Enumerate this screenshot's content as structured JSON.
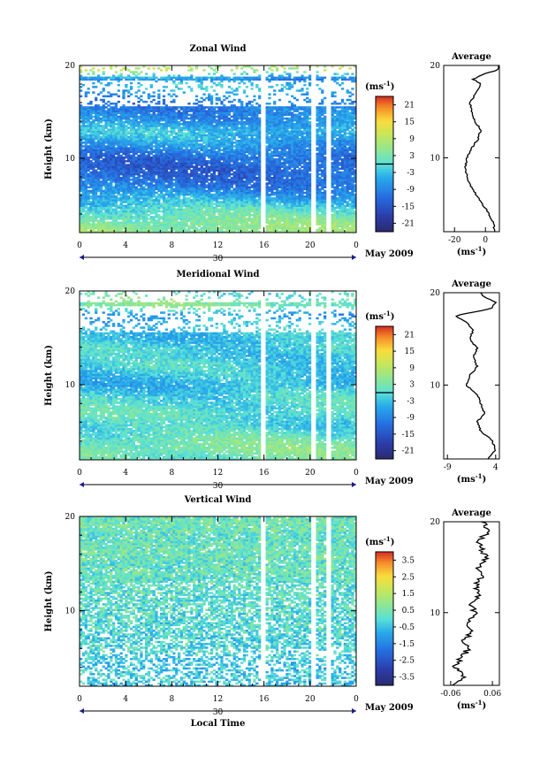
{
  "chart_data": [
    {
      "type": "heatmap",
      "title": "Zonal Wind",
      "ylabel": "Height (km)",
      "unit": "(ms",
      "unit_exp": "-1",
      "ylim": [
        2,
        20
      ],
      "yticks": [
        {
          "v": 10,
          "label": "10"
        },
        {
          "v": 20,
          "label": "20"
        }
      ],
      "xticks": [
        "0",
        "4",
        "8",
        "12",
        "16",
        "20",
        "0"
      ],
      "day_label": "30",
      "date_label": "May 2009",
      "colorbar": {
        "vmin": -24,
        "vmax": 24,
        "ticks": [
          "21",
          "15",
          "9",
          "3",
          "-3",
          "-9",
          "-15",
          "-21"
        ],
        "tick_values": [
          21,
          15,
          9,
          3,
          -3,
          -9,
          -15,
          -21
        ],
        "zero_line": 0
      },
      "profile_values": {
        "heights": [
          2,
          3,
          4,
          5,
          6,
          7,
          8,
          9,
          10,
          11,
          12,
          13,
          14,
          15,
          16,
          17,
          17.5,
          18,
          18.5,
          19,
          19.5,
          20
        ],
        "values": [
          6,
          5,
          2,
          -2,
          -6,
          -10,
          -12,
          -13,
          -12,
          -9,
          -5,
          -3,
          -7,
          -9,
          -10,
          -6,
          -4,
          -3,
          -8,
          -2,
          8,
          9
        ]
      },
      "profile": {
        "title": "Average",
        "xticks": [
          {
            "v": -20,
            "label": "-20"
          },
          {
            "v": 0,
            "label": "0"
          }
        ],
        "xlim": [
          -27,
          9
        ],
        "unit": "(ms",
        "unit_exp": "-1"
      }
    },
    {
      "type": "heatmap",
      "title": "Meridional Wind",
      "ylabel": "Height (km)",
      "unit": "(ms",
      "unit_exp": "-1",
      "ylim": [
        2,
        20
      ],
      "yticks": [
        {
          "v": 10,
          "label": "10"
        },
        {
          "v": 20,
          "label": "20"
        }
      ],
      "xticks": [
        "0",
        "4",
        "8",
        "12",
        "16",
        "20",
        "0"
      ],
      "day_label": "30",
      "date_label": "May 2009",
      "colorbar": {
        "vmin": -24,
        "vmax": 24,
        "ticks": [
          "21",
          "15",
          "9",
          "3",
          "-3",
          "-9",
          "-15",
          "-21"
        ],
        "tick_values": [
          21,
          15,
          9,
          3,
          -3,
          -9,
          -15,
          -21
        ],
        "zero_line": 0
      },
      "profile_values": {
        "heights": [
          2,
          3,
          4,
          5,
          6,
          7,
          8,
          9,
          10,
          11,
          12,
          13,
          14,
          15,
          16,
          16.8,
          17.5,
          18.3,
          19,
          19.5,
          20
        ],
        "values": [
          2,
          4,
          3,
          0,
          -1,
          1,
          0,
          -1,
          -4,
          -3,
          -1,
          -2,
          -1,
          -3,
          -2,
          -4,
          -7,
          3,
          4,
          1,
          0
        ]
      },
      "profile": {
        "title": "Average",
        "xticks": [
          {
            "v": -9,
            "label": "-9"
          },
          {
            "v": 4,
            "label": "4"
          }
        ],
        "xlim": [
          -10,
          5
        ],
        "unit": "(ms",
        "unit_exp": "-1"
      }
    },
    {
      "type": "heatmap",
      "title": "Vertical Wind",
      "ylabel": "Height (km)",
      "xlabel": "Local Time",
      "unit": "(ms",
      "unit_exp": "-1",
      "ylim": [
        2,
        20
      ],
      "yticks": [
        {
          "v": 10,
          "label": "10"
        },
        {
          "v": 20,
          "label": "20"
        }
      ],
      "xticks": [
        "0",
        "4",
        "8",
        "12",
        "16",
        "20",
        "0"
      ],
      "day_label": "30",
      "date_label": "May 2009",
      "colorbar": {
        "vmin": -4,
        "vmax": 4,
        "ticks": [
          "3.5",
          "2.5",
          "1.5",
          "0.5",
          "-0.5",
          "-1.5",
          "-2.5",
          "-3.5"
        ],
        "tick_values": [
          3.5,
          2.5,
          1.5,
          0.5,
          -0.5,
          -1.5,
          -2.5,
          -3.5
        ],
        "zero_line": null
      },
      "profile_values": {
        "heights": [
          2,
          3,
          4,
          5,
          6,
          7,
          8,
          9,
          10,
          11,
          12,
          13,
          14,
          15,
          16,
          17,
          18,
          19,
          20
        ],
        "values": [
          -0.06,
          -0.02,
          -0.05,
          -0.03,
          -0.01,
          -0.02,
          0.0,
          -0.01,
          0.01,
          0.0,
          0.02,
          0.01,
          0.03,
          0.02,
          0.04,
          0.03,
          0.02,
          0.05,
          0.03
        ]
      },
      "profile": {
        "title": "Average",
        "xticks": [
          {
            "v": -0.06,
            "label": "-0.06"
          },
          {
            "v": 0.06,
            "label": "0.06"
          }
        ],
        "xlim": [
          -0.08,
          0.08
        ],
        "unit": "(ms",
        "unit_exp": "-1"
      }
    }
  ]
}
